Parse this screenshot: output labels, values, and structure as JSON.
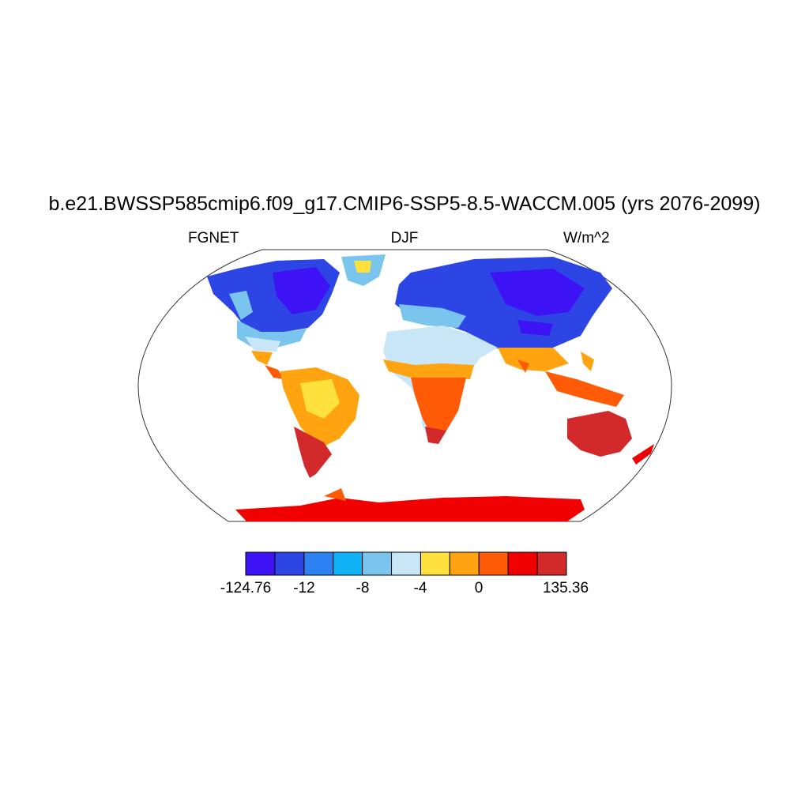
{
  "title": "b.e21.BWSSP585cmip6.f09_g17.CMIP6-SSP5-8.5-WACCM.005 (yrs 2076-2099)",
  "subtitle": {
    "left": "FGNET",
    "center": "DJF",
    "right": "W/m^2"
  },
  "colorbar": {
    "colors": [
      "#3d12f5",
      "#2e45e6",
      "#2d80ef",
      "#10b2f5",
      "#7ac5ed",
      "#c8e6f6",
      "#ffe13d",
      "#ffa410",
      "#ff5a06",
      "#f10000",
      "#d22a2a"
    ],
    "tick_labels": [
      "-124.76",
      "-12",
      "-8",
      "-4",
      "0",
      "135.36"
    ]
  },
  "colors": {
    "ocean": "#ffffff",
    "border": "#000000"
  }
}
